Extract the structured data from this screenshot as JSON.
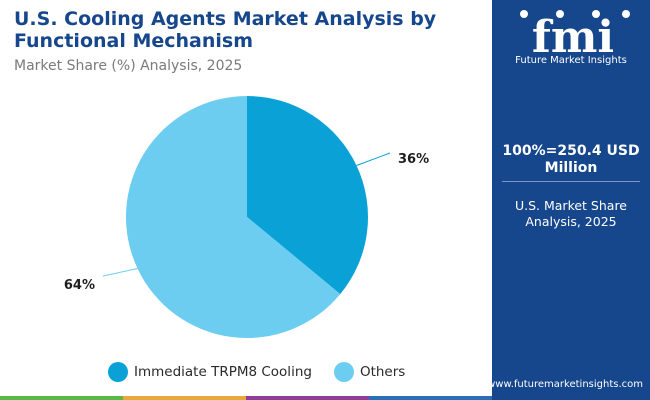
{
  "header": {
    "title": "U.S. Cooling Agents Market Analysis by Functional Mechanism",
    "subtitle": "Market Share (%) Analysis, 2025"
  },
  "chart_data": {
    "type": "pie",
    "title": "U.S. Cooling Agents Market Analysis by Functional Mechanism",
    "subtitle": "Market Share (%) Analysis, 2025",
    "labels": [
      "Immediate TRPM8 Cooling",
      "Others"
    ],
    "values": [
      36,
      64
    ],
    "value_labels": [
      "36%",
      "64%"
    ],
    "colors": [
      "#0aa2d6",
      "#6dcdf1"
    ],
    "legend_position": "bottom"
  },
  "sidebar": {
    "logo_text": "fmi",
    "brand": "Future Market Insights",
    "total": "100%=250.4 USD Million",
    "note": "U.S. Market Share Analysis, 2025",
    "website": "www.futuremarketinsights.com",
    "background": "#16468b"
  },
  "footer_colors": [
    "#5ab846",
    "#e8a83c",
    "#8d3f96",
    "#2c6db5"
  ]
}
